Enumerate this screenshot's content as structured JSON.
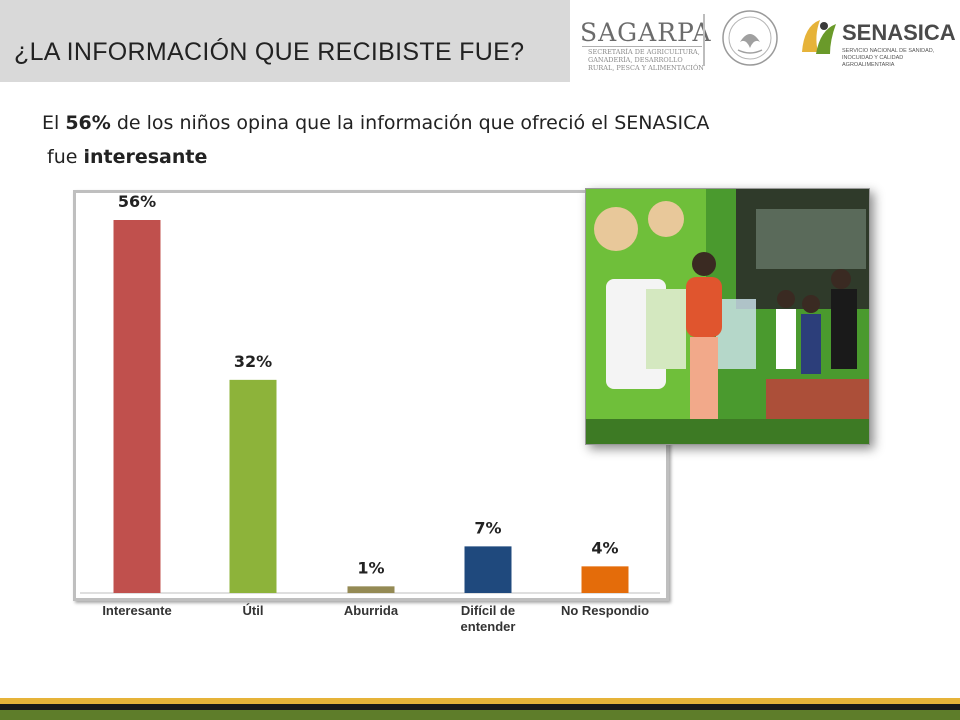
{
  "header": {
    "title": "¿LA INFORMACIÓN QUE RECIBISTE FUE?"
  },
  "logos": {
    "sagarpa": "SAGARPA",
    "sagarpa_subtitle": "SECRETARÍA DE AGRICULTURA, GANADERÍA, DESARROLLO RURAL, PESCA Y ALIMENTACIÓN",
    "senasica": "SENASICA",
    "senasica_subtitle": "SERVICIO NACIONAL DE SANIDAD, INOCUIDAD Y CALIDAD AGROALIMENTARIA"
  },
  "headline": {
    "part1": "El ",
    "pct": "56%",
    "part2": " de los niños opina que la información que ofreció el SENASICA",
    "part3": "fue ",
    "emph": "interesante"
  },
  "colors": {
    "interesante": "#c0504d",
    "util": "#8db33a",
    "aburrida": "#948a54",
    "dificil": "#1f497d",
    "no_respondio": "#e46c0a"
  },
  "chart_data": {
    "type": "bar",
    "categories": [
      "Interesante",
      "Útil",
      "Aburrida",
      "Difícil de entender",
      "No Respondio"
    ],
    "category_lines": [
      [
        "Interesante"
      ],
      [
        "Útil"
      ],
      [
        "Aburrida"
      ],
      [
        "Difícil de",
        "entender"
      ],
      [
        "No Respondio"
      ]
    ],
    "values": [
      56,
      32,
      1,
      7,
      4
    ],
    "value_labels": [
      "56%",
      "32%",
      "1%",
      "7%",
      "4%"
    ],
    "bar_colors": [
      "#c0504d",
      "#8db33a",
      "#948a54",
      "#1f497d",
      "#e46c0a"
    ],
    "ylim": [
      0,
      60
    ],
    "grid": false,
    "legend": "none",
    "title": "",
    "xlabel": "",
    "ylabel": ""
  }
}
